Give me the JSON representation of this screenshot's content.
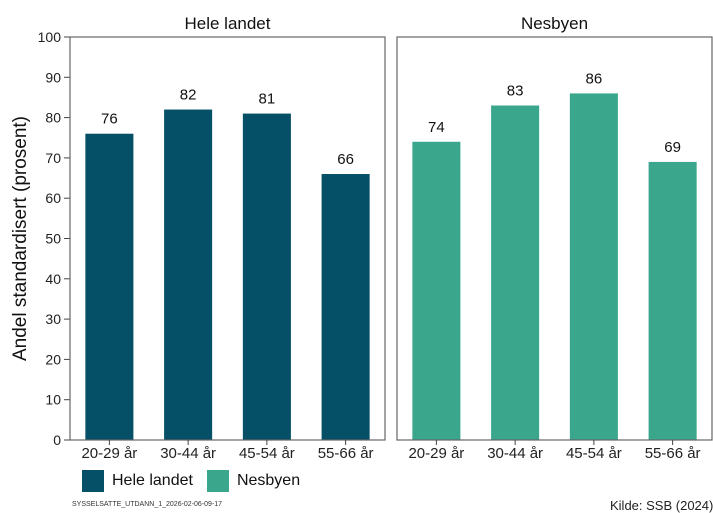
{
  "chart_data": {
    "type": "bar",
    "ylabel": "Andel standardisert (prosent)",
    "ylim": [
      0,
      100
    ],
    "yticks": [
      0,
      10,
      20,
      30,
      40,
      50,
      60,
      70,
      80,
      90,
      100
    ],
    "categories": [
      "20-29 år",
      "30-44 år",
      "45-54 år",
      "55-66 år"
    ],
    "grid": false,
    "legend_position": "bottom-left",
    "panels": [
      {
        "title": "Hele landet",
        "series_name": "Hele landet",
        "color": "#054f67",
        "values": [
          76,
          82,
          81,
          66
        ],
        "labels": [
          "76",
          "82",
          "81",
          "66"
        ]
      },
      {
        "title": "Nesbyen",
        "series_name": "Nesbyen",
        "color": "#3aa68c",
        "values": [
          74,
          83,
          86,
          69
        ],
        "labels": [
          "74",
          "83",
          "86",
          "69"
        ]
      }
    ]
  },
  "legend": {
    "items": [
      {
        "label": "Hele landet",
        "color": "#054f67"
      },
      {
        "label": "Nesbyen",
        "color": "#3aa68c"
      }
    ]
  },
  "footer": {
    "id": "SYSSELSATTE_UTDANN_1_2026-02-06-09-17",
    "source": "Kilde: SSB (2024)"
  }
}
